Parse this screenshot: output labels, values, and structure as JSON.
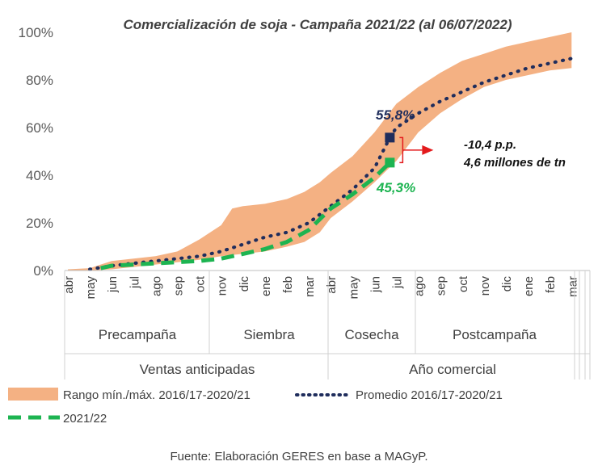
{
  "chart_data": {
    "type": "area",
    "title": "Comercialización de soja - Campaña 2021/22 (al 06/07/2022)",
    "y_ticks": [
      "0%",
      "20%",
      "40%",
      "60%",
      "80%",
      "100%"
    ],
    "ylim": [
      0,
      100
    ],
    "months": [
      "abr",
      "may",
      "jun",
      "jul",
      "ago",
      "sep",
      "oct",
      "nov",
      "dic",
      "ene",
      "feb",
      "mar",
      "abr",
      "may",
      "jun",
      "jul",
      "ago",
      "sep",
      "oct",
      "nov",
      "dic",
      "ene",
      "feb",
      "mar"
    ],
    "phases": [
      "Precampaña",
      "Siembra",
      "Cosecha",
      "Postcampaña"
    ],
    "periods": [
      "Ventas anticipadas",
      "Año comercial"
    ],
    "series": [
      {
        "name": "Rango mín./máx. 2016/17-2020/21",
        "color": "#f4b183",
        "x": [
          0,
          1,
          2,
          3,
          4,
          5,
          6,
          7,
          7.5,
          8,
          9,
          10,
          10.8,
          11.5,
          12,
          13,
          14,
          15,
          16,
          17,
          18,
          19,
          20,
          21,
          22,
          23
        ],
        "low": [
          0,
          0,
          0.5,
          1.5,
          2.5,
          3.5,
          4.5,
          6,
          6.5,
          7,
          8,
          10,
          12,
          16,
          22,
          29,
          37,
          46,
          58,
          66,
          72,
          77,
          80,
          82,
          84,
          85
        ],
        "high": [
          0.5,
          1,
          4,
          5,
          6,
          8,
          13,
          19,
          26,
          27,
          28,
          30,
          33,
          37,
          41,
          48,
          58,
          70,
          77,
          83,
          88,
          91,
          94,
          96,
          98,
          100
        ]
      },
      {
        "name": "Promedio 2016/17-2020/21",
        "color": "#1f2d5c",
        "x": [
          1,
          2,
          3,
          4,
          5,
          6,
          7,
          8,
          9,
          10,
          11,
          12,
          13,
          14,
          14.7,
          15,
          16,
          17,
          18,
          19,
          20,
          21,
          22,
          23
        ],
        "values": [
          0.5,
          2,
          3,
          4,
          5,
          6,
          8,
          11,
          14,
          16,
          20,
          27,
          34,
          43,
          55.8,
          60,
          66,
          71,
          75,
          79,
          82,
          85,
          87,
          89
        ]
      },
      {
        "name": "2021/22",
        "color": "#1db451",
        "x": [
          1.5,
          2,
          3,
          4,
          5,
          6,
          7,
          8,
          9,
          10,
          11,
          12,
          13,
          14,
          14.7
        ],
        "values": [
          1,
          2,
          2.5,
          3,
          3.5,
          4,
          5,
          7,
          9,
          12,
          17,
          26,
          32,
          39,
          45.3
        ]
      }
    ],
    "annotations": {
      "avg_label": "55,8%",
      "cur_label": "45,3%",
      "avg_value": 55.8,
      "cur_value": 45.3,
      "diff_line1": "-10,4 p.p.",
      "diff_line2": "4,6 millones de tn"
    },
    "legend_position": "bottom"
  },
  "source": "Fuente: Elaboración GERES en base a MAGyP."
}
